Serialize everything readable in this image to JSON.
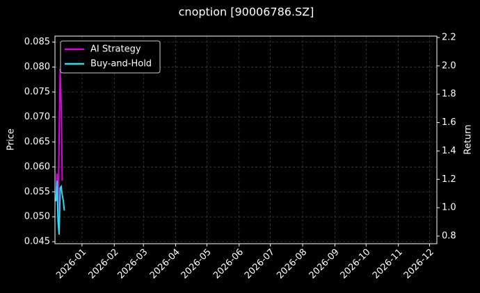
{
  "chart_data": {
    "type": "line",
    "title": "cnoption [90006786.SZ]",
    "ylabel": "Price",
    "y2label": "Return",
    "x": [
      "2025-12-07",
      "2025-12-08",
      "2025-12-09",
      "2025-12-10",
      "2025-12-11",
      "2025-12-12",
      "2025-12-13",
      "2025-12-14",
      "2025-12-15"
    ],
    "series": [
      {
        "name": "AI Strategy",
        "color": "#e000e0",
        "axis": "y2",
        "values": [
          1.045,
          1.24,
          0.9,
          1.49,
          1.98,
          1.73,
          1.19,
          null,
          null
        ]
      },
      {
        "name": "Buy-and-Hold",
        "color": "#22e0f0",
        "axis": "y2",
        "values": [
          1.045,
          1.19,
          0.9,
          0.81,
          1.14,
          1.15,
          1.09,
          1.05,
          0.98
        ]
      }
    ],
    "xlim": [
      "2025-12-06",
      "2026-12-08"
    ],
    "xticks": [
      {
        "value": "2026-01-01",
        "label": "2026-01"
      },
      {
        "value": "2026-02-01",
        "label": "2026-02"
      },
      {
        "value": "2026-03-01",
        "label": "2026-03"
      },
      {
        "value": "2026-04-01",
        "label": "2026-04"
      },
      {
        "value": "2026-05-01",
        "label": "2026-05"
      },
      {
        "value": "2026-06-01",
        "label": "2026-06"
      },
      {
        "value": "2026-07-01",
        "label": "2026-07"
      },
      {
        "value": "2026-08-01",
        "label": "2026-08"
      },
      {
        "value": "2026-09-01",
        "label": "2026-09"
      },
      {
        "value": "2026-10-01",
        "label": "2026-10"
      },
      {
        "value": "2026-11-01",
        "label": "2026-11"
      },
      {
        "value": "2026-12-01",
        "label": "2026-12"
      }
    ],
    "ylim": [
      0.0446,
      0.0862
    ],
    "yticks": [
      0.045,
      {
        "value": 0.05,
        "label": "0.050"
      },
      0.055,
      {
        "value": 0.06,
        "label": "0.060"
      },
      0.065,
      {
        "value": 0.07,
        "label": "0.070"
      },
      0.075,
      {
        "value": 0.08,
        "label": "0.080"
      },
      0.085
    ],
    "y2lim": [
      0.746,
      2.21
    ],
    "y2ticks": [
      0.8,
      {
        "value": 1,
        "label": "1.0"
      },
      1.2,
      1.4,
      1.6,
      1.8,
      {
        "value": 2,
        "label": "2.0"
      },
      2.2
    ],
    "grid": true,
    "legend": "upper left"
  }
}
